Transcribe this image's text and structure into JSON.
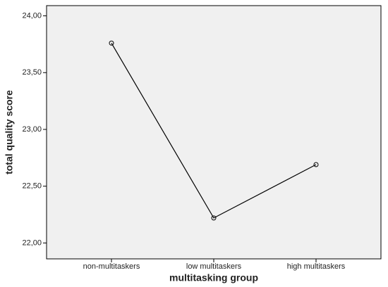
{
  "chart_data": {
    "type": "line",
    "x_label": "multitasking group",
    "y_label": "total quality score",
    "categories": [
      "non-multitaskers",
      "low multitaskers",
      "high multitaskers"
    ],
    "series": [
      {
        "values": [
          23.76,
          22.22,
          22.69
        ],
        "color": "#000000"
      }
    ],
    "ylim": [
      21.86,
      24.09
    ],
    "yticks": [
      {
        "value": 22,
        "label": "22,00"
      },
      {
        "value": 22.5,
        "label": "22,50"
      },
      {
        "value": 23,
        "label": "23,00"
      },
      {
        "value": 23.5,
        "label": "23,50"
      },
      {
        "value": 24,
        "label": "24,00"
      }
    ],
    "grid": false
  }
}
